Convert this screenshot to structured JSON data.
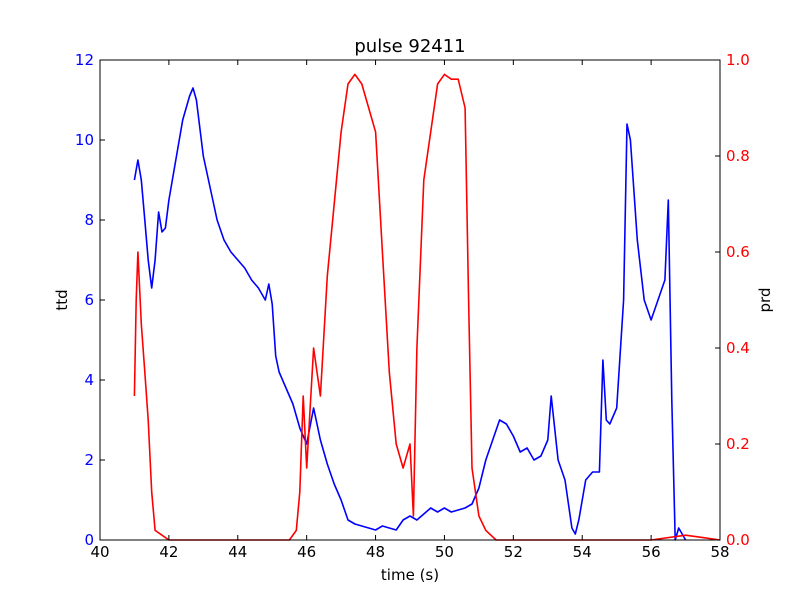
{
  "chart_data": {
    "type": "line",
    "title": "pulse 92411",
    "xlabel": "time (s)",
    "x_range": [
      40,
      58
    ],
    "x_ticks": [
      "40",
      "42",
      "44",
      "46",
      "48",
      "50",
      "52",
      "54",
      "56",
      "58"
    ],
    "left_axis": {
      "label": "ttd",
      "color": "#0000ff",
      "range": [
        0,
        12
      ],
      "ticks": [
        "0",
        "2",
        "4",
        "6",
        "8",
        "10",
        "12"
      ]
    },
    "right_axis": {
      "label": "prd",
      "color": "#ff0000",
      "range": [
        0,
        1.0
      ],
      "ticks": [
        "0.0",
        "0.2",
        "0.4",
        "0.6",
        "0.8",
        "1.0"
      ]
    },
    "grid": false,
    "series": [
      {
        "axis": "left",
        "color": "#0000ff",
        "x": [
          41.0,
          41.1,
          41.2,
          41.3,
          41.4,
          41.5,
          41.6,
          41.7,
          41.8,
          41.9,
          42.0,
          42.2,
          42.4,
          42.6,
          42.7,
          42.8,
          43.0,
          43.2,
          43.4,
          43.6,
          43.8,
          44.0,
          44.2,
          44.4,
          44.6,
          44.8,
          44.9,
          45.0,
          45.1,
          45.2,
          45.4,
          45.6,
          45.8,
          46.0,
          46.2,
          46.4,
          46.6,
          46.8,
          47.0,
          47.2,
          47.4,
          47.6,
          47.8,
          48.0,
          48.2,
          48.4,
          48.6,
          48.8,
          49.0,
          49.2,
          49.4,
          49.6,
          49.8,
          50.0,
          50.2,
          50.4,
          50.6,
          50.8,
          51.0,
          51.2,
          51.4,
          51.6,
          51.8,
          52.0,
          52.2,
          52.4,
          52.6,
          52.8,
          53.0,
          53.1,
          53.3,
          53.5,
          53.7,
          53.8,
          53.9,
          54.1,
          54.3,
          54.5,
          54.6,
          54.7,
          54.8,
          55.0,
          55.2,
          55.3,
          55.4,
          55.6,
          55.8,
          56.0,
          56.2,
          56.4,
          56.5,
          56.6,
          56.7,
          56.8,
          57.0
        ],
        "values": [
          9.0,
          9.5,
          9.0,
          8.0,
          7.0,
          6.3,
          7.0,
          8.2,
          7.7,
          7.8,
          8.5,
          9.5,
          10.5,
          11.1,
          11.3,
          11.0,
          9.6,
          8.8,
          8.0,
          7.5,
          7.2,
          7.0,
          6.8,
          6.5,
          6.3,
          6.0,
          6.4,
          5.9,
          4.6,
          4.2,
          3.8,
          3.4,
          2.8,
          2.4,
          3.3,
          2.5,
          1.9,
          1.4,
          1.0,
          0.5,
          0.4,
          0.35,
          0.3,
          0.25,
          0.35,
          0.3,
          0.25,
          0.5,
          0.6,
          0.5,
          0.65,
          0.8,
          0.7,
          0.8,
          0.7,
          0.75,
          0.8,
          0.9,
          1.3,
          2.0,
          2.5,
          3.0,
          2.9,
          2.6,
          2.2,
          2.3,
          2.0,
          2.1,
          2.5,
          3.6,
          2.0,
          1.5,
          0.3,
          0.15,
          0.5,
          1.5,
          1.7,
          1.7,
          4.5,
          3.0,
          2.9,
          3.3,
          6.0,
          10.4,
          10.0,
          7.5,
          6.0,
          5.5,
          6.0,
          6.5,
          8.5,
          3.5,
          0.0,
          0.3,
          0.0
        ]
      },
      {
        "axis": "right",
        "color": "#ff0000",
        "x": [
          41.0,
          41.05,
          41.1,
          41.2,
          41.3,
          41.4,
          41.5,
          41.6,
          41.8,
          42.0,
          42.5,
          43.0,
          44.0,
          45.0,
          45.5,
          45.7,
          45.8,
          45.9,
          46.0,
          46.2,
          46.4,
          46.6,
          46.8,
          47.0,
          47.2,
          47.4,
          47.6,
          47.8,
          48.0,
          48.2,
          48.4,
          48.6,
          48.8,
          49.0,
          49.1,
          49.2,
          49.4,
          49.6,
          49.8,
          50.0,
          50.2,
          50.4,
          50.6,
          50.7,
          50.8,
          51.0,
          51.2,
          51.5,
          52.0,
          53.0,
          54.0,
          55.0,
          56.0,
          57.0,
          57.5,
          58.0
        ],
        "values": [
          0.3,
          0.5,
          0.6,
          0.45,
          0.35,
          0.25,
          0.1,
          0.02,
          0.01,
          0.0,
          0.0,
          0.0,
          0.0,
          0.0,
          0.0,
          0.02,
          0.1,
          0.3,
          0.15,
          0.4,
          0.3,
          0.55,
          0.7,
          0.85,
          0.95,
          0.97,
          0.95,
          0.9,
          0.85,
          0.6,
          0.35,
          0.2,
          0.15,
          0.2,
          0.05,
          0.4,
          0.75,
          0.85,
          0.95,
          0.97,
          0.96,
          0.96,
          0.9,
          0.5,
          0.15,
          0.05,
          0.02,
          0.0,
          0.0,
          0.0,
          0.0,
          0.0,
          0.0,
          0.01,
          0.005,
          0.0
        ]
      }
    ]
  }
}
